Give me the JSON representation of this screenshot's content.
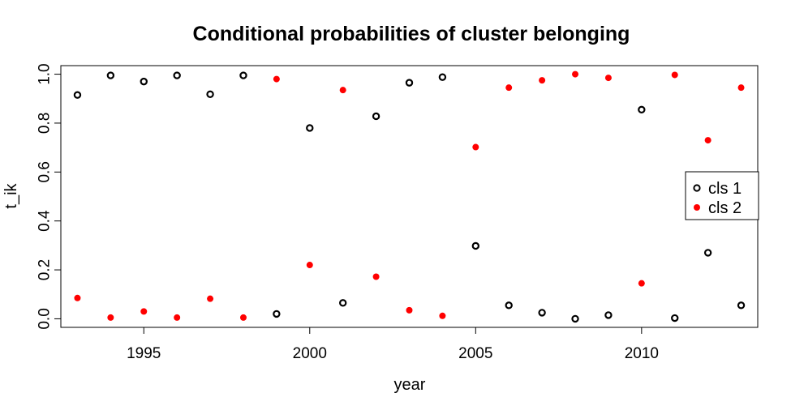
{
  "chart_data": {
    "type": "scatter",
    "title": "Conditional probabilities of cluster belonging",
    "xlabel": "year",
    "ylabel": "t_ik",
    "xlim": [
      1992.5,
      2013.5
    ],
    "ylim": [
      -0.035,
      1.035
    ],
    "x_ticks": [
      1995,
      2000,
      2005,
      2010
    ],
    "y_ticks": [
      0.0,
      0.2,
      0.4,
      0.6,
      0.8,
      1.0
    ],
    "y_tick_labels": [
      "0.0",
      "0.2",
      "0.4",
      "0.6",
      "0.8",
      "1.0"
    ],
    "grid": false,
    "legend_position": "right",
    "series": [
      {
        "name": "cls 1",
        "marker": "open-circle",
        "color": "#000000",
        "x": [
          1993,
          1994,
          1995,
          1996,
          1997,
          1998,
          1999,
          2000,
          2001,
          2002,
          2003,
          2004,
          2005,
          2006,
          2007,
          2008,
          2009,
          2010,
          2011,
          2012,
          2013
        ],
        "y": [
          0.915,
          0.995,
          0.97,
          0.995,
          0.918,
          0.995,
          0.02,
          0.78,
          0.065,
          0.828,
          0.965,
          0.988,
          0.298,
          0.055,
          0.025,
          0.0,
          0.015,
          0.855,
          0.003,
          0.27,
          0.055
        ]
      },
      {
        "name": "cls 2",
        "marker": "filled-circle",
        "color": "#ff0000",
        "x": [
          1993,
          1994,
          1995,
          1996,
          1997,
          1998,
          1999,
          2000,
          2001,
          2002,
          2003,
          2004,
          2005,
          2006,
          2007,
          2008,
          2009,
          2010,
          2011,
          2012,
          2013
        ],
        "y": [
          0.085,
          0.005,
          0.03,
          0.005,
          0.082,
          0.005,
          0.98,
          0.22,
          0.935,
          0.172,
          0.035,
          0.012,
          0.702,
          0.945,
          0.975,
          1.0,
          0.985,
          0.145,
          0.997,
          0.73,
          0.945
        ]
      }
    ],
    "legend": {
      "entries": [
        "cls 1",
        "cls 2"
      ]
    }
  }
}
